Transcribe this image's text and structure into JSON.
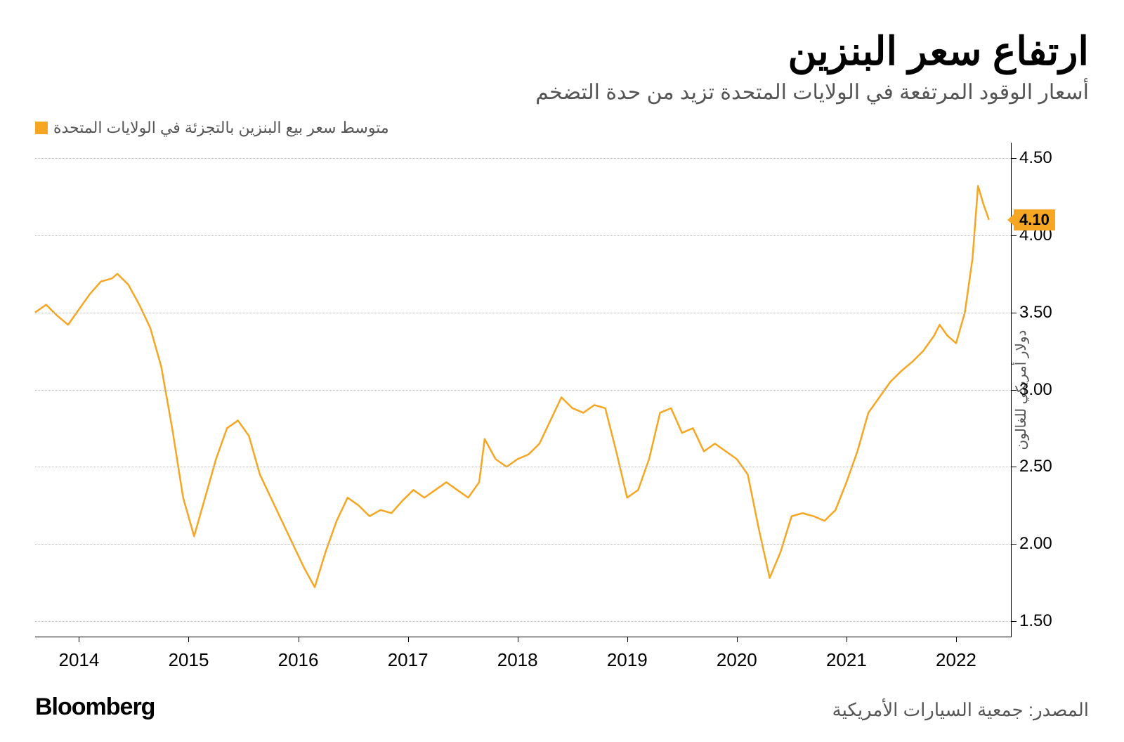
{
  "title": "ارتفاع سعر البنزين",
  "subtitle": "أسعار الوقود المرتفعة في الولايات المتحدة تزيد من حدة التضخم",
  "legend": {
    "label": "متوسط سعر بيع البنزين بالتجزئة في الولايات المتحدة",
    "color": "#f5a623"
  },
  "chart": {
    "type": "line",
    "line_color": "#f5a623",
    "line_width": 2.5,
    "background_color": "#ffffff",
    "grid_color": "#bbbbbb",
    "axis_color": "#000000",
    "y_axis_label": "دولار أمريكي للغالون",
    "ylim": [
      1.4,
      4.6
    ],
    "y_ticks": [
      1.5,
      2.0,
      2.5,
      3.0,
      3.5,
      4.0,
      4.5
    ],
    "y_tick_labels": [
      "1.50",
      "2.00",
      "2.50",
      "3.00",
      "3.50",
      "4.00",
      "4.50"
    ],
    "xlim": [
      2013.6,
      2022.5
    ],
    "x_ticks": [
      2014,
      2015,
      2016,
      2017,
      2018,
      2019,
      2020,
      2021,
      2022
    ],
    "x_tick_labels": [
      "2014",
      "2015",
      "2016",
      "2017",
      "2018",
      "2019",
      "2020",
      "2021",
      "2022"
    ],
    "last_value": 4.1,
    "last_value_label": "4.10",
    "badge_bg": "#f5a623",
    "tick_fontsize": 24,
    "label_fontsize": 20,
    "series": [
      {
        "x": 2013.6,
        "y": 3.5
      },
      {
        "x": 2013.7,
        "y": 3.55
      },
      {
        "x": 2013.8,
        "y": 3.48
      },
      {
        "x": 2013.9,
        "y": 3.42
      },
      {
        "x": 2014.0,
        "y": 3.52
      },
      {
        "x": 2014.1,
        "y": 3.62
      },
      {
        "x": 2014.2,
        "y": 3.7
      },
      {
        "x": 2014.3,
        "y": 3.72
      },
      {
        "x": 2014.35,
        "y": 3.75
      },
      {
        "x": 2014.45,
        "y": 3.68
      },
      {
        "x": 2014.55,
        "y": 3.55
      },
      {
        "x": 2014.65,
        "y": 3.4
      },
      {
        "x": 2014.75,
        "y": 3.15
      },
      {
        "x": 2014.85,
        "y": 2.75
      },
      {
        "x": 2014.95,
        "y": 2.3
      },
      {
        "x": 2015.05,
        "y": 2.05
      },
      {
        "x": 2015.15,
        "y": 2.3
      },
      {
        "x": 2015.25,
        "y": 2.55
      },
      {
        "x": 2015.35,
        "y": 2.75
      },
      {
        "x": 2015.45,
        "y": 2.8
      },
      {
        "x": 2015.55,
        "y": 2.7
      },
      {
        "x": 2015.65,
        "y": 2.45
      },
      {
        "x": 2015.75,
        "y": 2.3
      },
      {
        "x": 2015.85,
        "y": 2.15
      },
      {
        "x": 2015.95,
        "y": 2.0
      },
      {
        "x": 2016.05,
        "y": 1.85
      },
      {
        "x": 2016.15,
        "y": 1.72
      },
      {
        "x": 2016.25,
        "y": 1.95
      },
      {
        "x": 2016.35,
        "y": 2.15
      },
      {
        "x": 2016.45,
        "y": 2.3
      },
      {
        "x": 2016.55,
        "y": 2.25
      },
      {
        "x": 2016.65,
        "y": 2.18
      },
      {
        "x": 2016.75,
        "y": 2.22
      },
      {
        "x": 2016.85,
        "y": 2.2
      },
      {
        "x": 2016.95,
        "y": 2.28
      },
      {
        "x": 2017.05,
        "y": 2.35
      },
      {
        "x": 2017.15,
        "y": 2.3
      },
      {
        "x": 2017.25,
        "y": 2.35
      },
      {
        "x": 2017.35,
        "y": 2.4
      },
      {
        "x": 2017.45,
        "y": 2.35
      },
      {
        "x": 2017.55,
        "y": 2.3
      },
      {
        "x": 2017.65,
        "y": 2.4
      },
      {
        "x": 2017.7,
        "y": 2.68
      },
      {
        "x": 2017.8,
        "y": 2.55
      },
      {
        "x": 2017.9,
        "y": 2.5
      },
      {
        "x": 2018.0,
        "y": 2.55
      },
      {
        "x": 2018.1,
        "y": 2.58
      },
      {
        "x": 2018.2,
        "y": 2.65
      },
      {
        "x": 2018.3,
        "y": 2.8
      },
      {
        "x": 2018.4,
        "y": 2.95
      },
      {
        "x": 2018.5,
        "y": 2.88
      },
      {
        "x": 2018.6,
        "y": 2.85
      },
      {
        "x": 2018.7,
        "y": 2.9
      },
      {
        "x": 2018.8,
        "y": 2.88
      },
      {
        "x": 2018.9,
        "y": 2.6
      },
      {
        "x": 2019.0,
        "y": 2.3
      },
      {
        "x": 2019.1,
        "y": 2.35
      },
      {
        "x": 2019.2,
        "y": 2.55
      },
      {
        "x": 2019.3,
        "y": 2.85
      },
      {
        "x": 2019.4,
        "y": 2.88
      },
      {
        "x": 2019.5,
        "y": 2.72
      },
      {
        "x": 2019.6,
        "y": 2.75
      },
      {
        "x": 2019.7,
        "y": 2.6
      },
      {
        "x": 2019.8,
        "y": 2.65
      },
      {
        "x": 2019.9,
        "y": 2.6
      },
      {
        "x": 2020.0,
        "y": 2.55
      },
      {
        "x": 2020.1,
        "y": 2.45
      },
      {
        "x": 2020.2,
        "y": 2.1
      },
      {
        "x": 2020.3,
        "y": 1.78
      },
      {
        "x": 2020.4,
        "y": 1.95
      },
      {
        "x": 2020.5,
        "y": 2.18
      },
      {
        "x": 2020.6,
        "y": 2.2
      },
      {
        "x": 2020.7,
        "y": 2.18
      },
      {
        "x": 2020.8,
        "y": 2.15
      },
      {
        "x": 2020.9,
        "y": 2.22
      },
      {
        "x": 2021.0,
        "y": 2.4
      },
      {
        "x": 2021.1,
        "y": 2.6
      },
      {
        "x": 2021.2,
        "y": 2.85
      },
      {
        "x": 2021.3,
        "y": 2.95
      },
      {
        "x": 2021.4,
        "y": 3.05
      },
      {
        "x": 2021.5,
        "y": 3.12
      },
      {
        "x": 2021.6,
        "y": 3.18
      },
      {
        "x": 2021.7,
        "y": 3.25
      },
      {
        "x": 2021.8,
        "y": 3.35
      },
      {
        "x": 2021.85,
        "y": 3.42
      },
      {
        "x": 2021.92,
        "y": 3.35
      },
      {
        "x": 2022.0,
        "y": 3.3
      },
      {
        "x": 2022.08,
        "y": 3.5
      },
      {
        "x": 2022.15,
        "y": 3.85
      },
      {
        "x": 2022.2,
        "y": 4.32
      },
      {
        "x": 2022.25,
        "y": 4.2
      },
      {
        "x": 2022.3,
        "y": 4.1
      }
    ]
  },
  "brand": "Bloomberg",
  "source": "المصدر: جمعية السيارات الأمريكية"
}
